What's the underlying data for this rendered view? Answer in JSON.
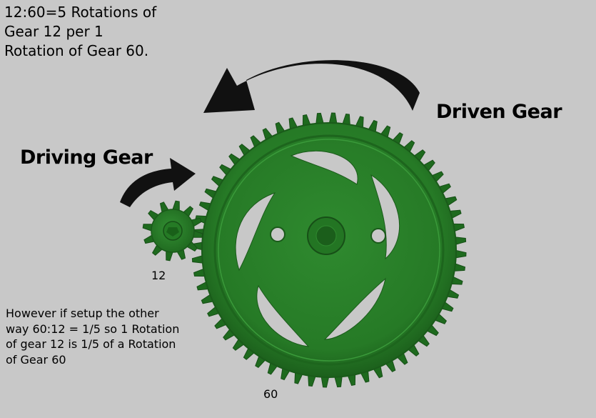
{
  "ratio_note": {
    "lines": [
      "12:60=5 Rotations of",
      "Gear 12 per 1",
      "Rotation of Gear 60."
    ]
  },
  "labels": {
    "driven_gear": "Driven Gear",
    "driving_gear": "Driving Gear"
  },
  "gear_counts": {
    "small": "12",
    "large": "60"
  },
  "setup_note": {
    "lines": [
      "However if setup the other",
      "way 60:12 = 1/5 so 1 Rotation",
      "of gear 12 is 1/5 of a Rotation",
      "of Gear 60"
    ]
  },
  "colors": {
    "background": "#c8c8c8",
    "gear_green": "#2a7a2a",
    "gear_dark": "#1a5a1a",
    "arrow": "#111111"
  },
  "icons": {
    "large_arrow": "curved-arrow-counterclockwise-icon",
    "small_arrow": "curved-arrow-clockwise-icon"
  }
}
